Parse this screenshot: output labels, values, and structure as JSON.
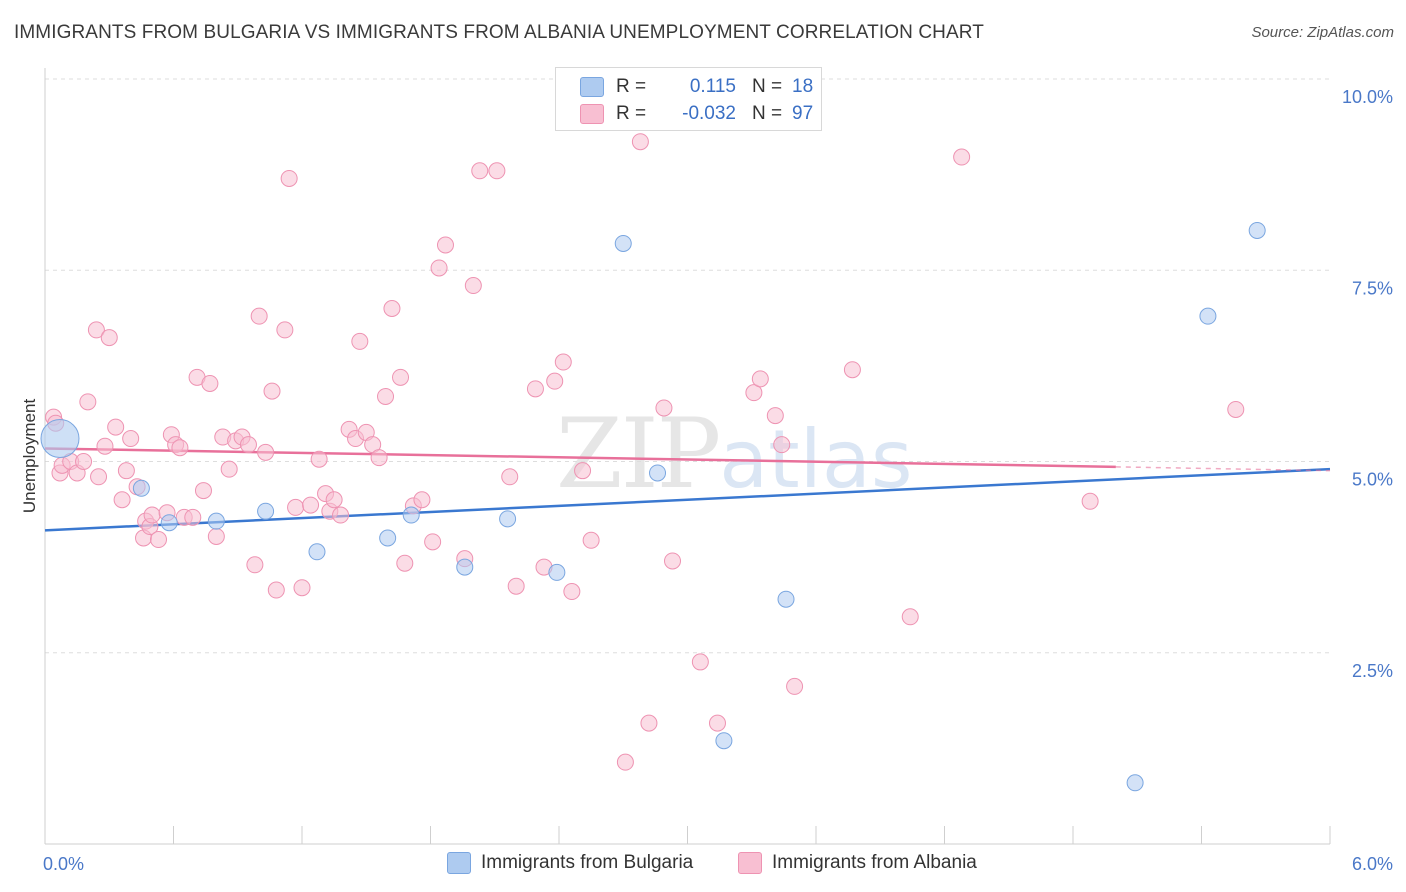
{
  "header": {
    "title": "IMMIGRANTS FROM BULGARIA VS IMMIGRANTS FROM ALBANIA UNEMPLOYMENT CORRELATION CHART",
    "source": "Source: ZipAtlas.com"
  },
  "watermark": {
    "zip": "ZIP",
    "atlas": "atlas"
  },
  "legend": {
    "rows": [
      {
        "r_label": "R =",
        "r_value": "0.115",
        "n_label": "N =",
        "n_value": "18",
        "color": "#aecbf0"
      },
      {
        "r_label": "R =",
        "r_value": "-0.032",
        "n_label": "N =",
        "n_value": "97",
        "color": "#f8bfd2"
      }
    ]
  },
  "bottom_legend": {
    "bulgaria": "Immigrants from Bulgaria",
    "albania": "Immigrants from Albania"
  },
  "colors": {
    "bulgaria_fill": "#aecbf0",
    "bulgaria_stroke": "#7aa6e0",
    "bulgaria_line": "#3a78d0",
    "albania_fill": "#f8bfd2",
    "albania_stroke": "#ee93b2",
    "albania_line": "#e8709a",
    "grid": "#dddddd",
    "tick_text": "#4a78c8"
  },
  "chart_data": {
    "type": "scatter",
    "title": "IMMIGRANTS FROM BULGARIA VS IMMIGRANTS FROM ALBANIA UNEMPLOYMENT CORRELATION CHART",
    "xlabel": "",
    "ylabel": "Unemployment",
    "xlim": [
      0,
      6
    ],
    "ylim": [
      0,
      10
    ],
    "x_tick_labels": [
      "0.0%",
      "6.0%"
    ],
    "y_ticks": [
      2.5,
      5.0,
      7.5,
      10.0
    ],
    "y_tick_labels": [
      "2.5%",
      "5.0%",
      "7.5%",
      "10.0%"
    ],
    "grid": true,
    "legend_position": "top-center",
    "series": [
      {
        "name": "Immigrants from Bulgaria",
        "points": [
          [
            0.07,
            5.3,
            "big"
          ],
          [
            0.45,
            4.65
          ],
          [
            0.58,
            4.2
          ],
          [
            0.8,
            4.22
          ],
          [
            1.03,
            4.35
          ],
          [
            1.27,
            3.82
          ],
          [
            1.6,
            4.0
          ],
          [
            1.71,
            4.3
          ],
          [
            1.96,
            3.62
          ],
          [
            2.16,
            4.25
          ],
          [
            2.39,
            3.55
          ],
          [
            2.7,
            7.85
          ],
          [
            2.86,
            4.85
          ],
          [
            3.17,
            1.35
          ],
          [
            3.46,
            3.2
          ],
          [
            5.09,
            0.8
          ],
          [
            5.43,
            6.9
          ],
          [
            5.66,
            8.02
          ]
        ],
        "trend": [
          [
            0,
            4.1
          ],
          [
            6,
            4.9
          ]
        ]
      },
      {
        "name": "Immigrants from Albania",
        "points": [
          [
            0.04,
            5.58
          ],
          [
            0.05,
            5.5
          ],
          [
            0.07,
            4.85
          ],
          [
            0.08,
            4.95
          ],
          [
            0.12,
            5.0
          ],
          [
            0.15,
            4.85
          ],
          [
            0.18,
            5.0
          ],
          [
            0.2,
            5.78
          ],
          [
            0.24,
            6.72
          ],
          [
            0.25,
            4.8
          ],
          [
            0.28,
            5.2
          ],
          [
            0.3,
            6.62
          ],
          [
            0.33,
            5.45
          ],
          [
            0.36,
            4.5
          ],
          [
            0.38,
            4.88
          ],
          [
            0.4,
            5.3
          ],
          [
            0.43,
            4.67
          ],
          [
            0.46,
            4.0
          ],
          [
            0.47,
            4.22
          ],
          [
            0.49,
            4.15
          ],
          [
            0.5,
            4.3
          ],
          [
            0.53,
            3.98
          ],
          [
            0.57,
            4.33
          ],
          [
            0.59,
            5.35
          ],
          [
            0.61,
            5.22
          ],
          [
            0.63,
            5.18
          ],
          [
            0.65,
            4.27
          ],
          [
            0.69,
            4.27
          ],
          [
            0.71,
            6.1
          ],
          [
            0.74,
            4.62
          ],
          [
            0.77,
            6.02
          ],
          [
            0.8,
            4.02
          ],
          [
            0.83,
            5.32
          ],
          [
            0.86,
            4.9
          ],
          [
            0.89,
            5.27
          ],
          [
            0.92,
            5.32
          ],
          [
            0.95,
            5.22
          ],
          [
            0.98,
            3.65
          ],
          [
            1.0,
            6.9
          ],
          [
            1.03,
            5.12
          ],
          [
            1.06,
            5.92
          ],
          [
            1.08,
            3.32
          ],
          [
            1.12,
            6.72
          ],
          [
            1.14,
            8.7
          ],
          [
            1.17,
            4.4
          ],
          [
            1.2,
            3.35
          ],
          [
            1.24,
            4.43
          ],
          [
            1.28,
            5.03
          ],
          [
            1.31,
            4.58
          ],
          [
            1.33,
            4.35
          ],
          [
            1.35,
            4.5
          ],
          [
            1.38,
            4.3
          ],
          [
            1.42,
            5.42
          ],
          [
            1.45,
            5.3
          ],
          [
            1.47,
            6.57
          ],
          [
            1.5,
            5.38
          ],
          [
            1.53,
            5.22
          ],
          [
            1.56,
            5.05
          ],
          [
            1.59,
            5.85
          ],
          [
            1.62,
            7.0
          ],
          [
            1.66,
            6.1
          ],
          [
            1.68,
            3.67
          ],
          [
            1.72,
            4.42
          ],
          [
            1.76,
            4.5
          ],
          [
            1.81,
            3.95
          ],
          [
            1.84,
            7.53
          ],
          [
            1.87,
            7.83
          ],
          [
            1.96,
            3.73
          ],
          [
            2.0,
            7.3
          ],
          [
            2.03,
            8.8
          ],
          [
            2.11,
            8.8
          ],
          [
            2.17,
            4.8
          ],
          [
            2.2,
            3.37
          ],
          [
            2.29,
            5.95
          ],
          [
            2.33,
            3.62
          ],
          [
            2.38,
            6.05
          ],
          [
            2.42,
            6.3
          ],
          [
            2.46,
            3.3
          ],
          [
            2.51,
            4.88
          ],
          [
            2.55,
            3.97
          ],
          [
            2.71,
            1.07
          ],
          [
            2.78,
            9.18
          ],
          [
            2.82,
            1.58
          ],
          [
            2.89,
            5.7
          ],
          [
            2.93,
            3.7
          ],
          [
            3.06,
            2.38
          ],
          [
            3.14,
            1.58
          ],
          [
            3.31,
            5.9
          ],
          [
            3.34,
            6.08
          ],
          [
            3.41,
            5.6
          ],
          [
            3.44,
            5.22
          ],
          [
            3.5,
            2.06
          ],
          [
            3.77,
            6.2
          ],
          [
            4.04,
            2.97
          ],
          [
            4.28,
            8.98
          ],
          [
            4.88,
            4.48
          ],
          [
            5.56,
            5.68
          ]
        ],
        "trend": [
          [
            0,
            5.17
          ],
          [
            5.0,
            4.93
          ]
        ],
        "trend_dashed": [
          [
            5.0,
            4.93
          ],
          [
            6,
            4.88
          ]
        ]
      }
    ]
  }
}
